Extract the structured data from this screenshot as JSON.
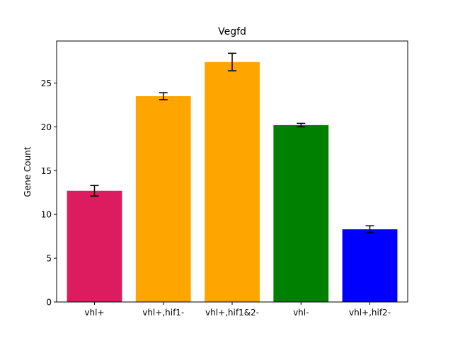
{
  "chart_data": {
    "type": "bar",
    "title": "Vegfd",
    "xlabel": "",
    "ylabel": "Gene Count",
    "categories": [
      "vhl+",
      "vhl+,hif1-",
      "vhl+,hif1&2-",
      "vhl-",
      "vhl+,hif2-"
    ],
    "values": [
      12.7,
      23.5,
      27.4,
      20.2,
      8.3
    ],
    "errors": [
      0.6,
      0.4,
      1.0,
      0.2,
      0.4
    ],
    "colors": [
      "#dc1c5f",
      "#ffa500",
      "#ffa500",
      "#008000",
      "#0000ff"
    ],
    "ylim": [
      0,
      29.8
    ],
    "yticks": [
      0,
      5,
      10,
      15,
      20,
      25
    ],
    "grid": false,
    "legend": "none"
  }
}
